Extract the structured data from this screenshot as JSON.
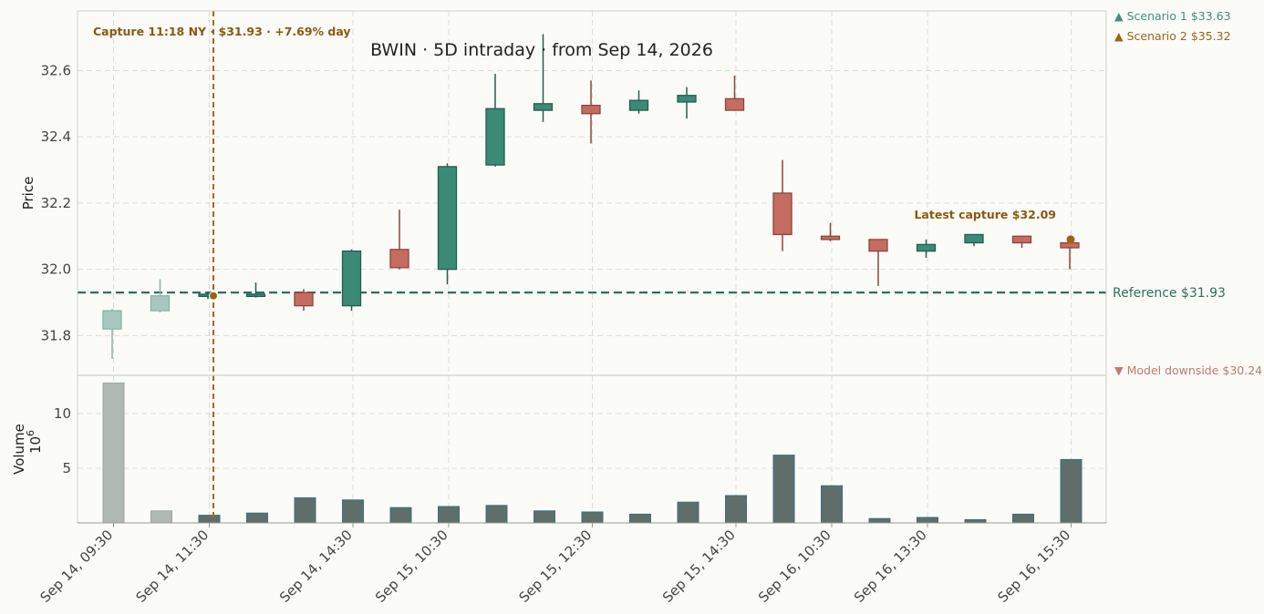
{
  "chart_data": {
    "type": "candlestick",
    "title": "BWIN  ·  5D intraday  ·  from Sep 14, 2026",
    "ylabel": "Price",
    "volume_label": "Volume",
    "volume_unit": "10^6",
    "price_ylim": [
      31.68,
      32.78
    ],
    "price_yticks": [
      "31.8",
      "32.0",
      "32.2",
      "32.4",
      "32.6"
    ],
    "price_ytick_values": [
      31.8,
      32.0,
      32.2,
      32.4,
      32.6
    ],
    "volume_ylim": [
      0,
      13.5
    ],
    "volume_yticks": [
      "5",
      "10"
    ],
    "volume_ytick_values": [
      5,
      10
    ],
    "x_tick_labels": [
      "Sep 14, 09:30",
      "Sep 14, 11:30",
      "Sep 14, 14:30",
      "Sep 15, 10:30",
      "Sep 15, 12:30",
      "Sep 15, 14:30",
      "Sep 16, 10:30",
      "Sep 16, 13:30",
      "Sep 16, 15:30"
    ],
    "x_tick_index": [
      0,
      2,
      5,
      7,
      10,
      13,
      15,
      17,
      20
    ],
    "candles": [
      {
        "o": 31.82,
        "h": 31.88,
        "l": 31.73,
        "c": 31.875,
        "v": 12.8,
        "faded": true
      },
      {
        "o": 31.875,
        "h": 31.97,
        "l": 31.87,
        "c": 31.92,
        "v": 1.1,
        "faded": true
      },
      {
        "o": 31.92,
        "h": 31.93,
        "l": 31.91,
        "c": 31.925,
        "v": 0.7
      },
      {
        "o": 31.92,
        "h": 31.96,
        "l": 31.915,
        "c": 31.925,
        "v": 0.9
      },
      {
        "o": 31.93,
        "h": 31.94,
        "l": 31.875,
        "c": 31.89,
        "v": 2.3
      },
      {
        "o": 31.89,
        "h": 32.06,
        "l": 31.875,
        "c": 32.055,
        "v": 2.1
      },
      {
        "o": 32.06,
        "h": 32.18,
        "l": 32.0,
        "c": 32.005,
        "v": 1.4
      },
      {
        "o": 32.0,
        "h": 32.32,
        "l": 31.955,
        "c": 32.31,
        "v": 1.5
      },
      {
        "o": 32.315,
        "h": 32.59,
        "l": 32.31,
        "c": 32.485,
        "v": 1.6
      },
      {
        "o": 32.48,
        "h": 32.71,
        "l": 32.445,
        "c": 32.5,
        "v": 1.1
      },
      {
        "o": 32.495,
        "h": 32.57,
        "l": 32.38,
        "c": 32.47,
        "v": 1.0
      },
      {
        "o": 32.48,
        "h": 32.54,
        "l": 32.47,
        "c": 32.51,
        "v": 0.8
      },
      {
        "o": 32.505,
        "h": 32.55,
        "l": 32.455,
        "c": 32.525,
        "v": 1.9
      },
      {
        "o": 32.515,
        "h": 32.585,
        "l": 32.48,
        "c": 32.48,
        "v": 2.5
      },
      {
        "o": 32.23,
        "h": 32.33,
        "l": 32.055,
        "c": 32.105,
        "v": 6.2
      },
      {
        "o": 32.1,
        "h": 32.14,
        "l": 32.085,
        "c": 32.09,
        "v": 3.4
      },
      {
        "o": 32.09,
        "h": 32.09,
        "l": 31.95,
        "c": 32.055,
        "v": 0.4
      },
      {
        "o": 32.055,
        "h": 32.09,
        "l": 32.035,
        "c": 32.075,
        "v": 0.5
      },
      {
        "o": 32.08,
        "h": 32.105,
        "l": 32.07,
        "c": 32.105,
        "v": 0.3
      },
      {
        "o": 32.1,
        "h": 32.1,
        "l": 32.065,
        "c": 32.08,
        "v": 0.8
      },
      {
        "o": 32.08,
        "h": 32.08,
        "l": 32.0,
        "c": 32.065,
        "v": 5.8
      }
    ],
    "reference": {
      "value": 31.93,
      "label": "Reference $31.93"
    },
    "capture_marker": {
      "index": 2,
      "value": 31.92,
      "label": "Capture 11:18 NY · $31.93 · +7.69% day"
    },
    "latest_capture": {
      "index": 20,
      "value": 32.09,
      "label": "Latest capture $32.09"
    },
    "scenarios": [
      {
        "label": "▲ Scenario 1 $33.63",
        "color": "#3f8f7d"
      },
      {
        "label": "▲ Scenario 2 $35.32",
        "color": "#98671c"
      },
      {
        "label": "▼ Model downside $30.24",
        "color": "#c17a6f"
      }
    ],
    "colors": {
      "up": "#3b8a76",
      "up_edge": "#245e4f",
      "down": "#c56c61",
      "down_edge": "#8d453c",
      "faded": "#a8c8bf",
      "volume": "#5f6e68",
      "volume_edge": "#3e6f86",
      "volume_faded": "#b0b8b4",
      "reference": "#2f6e5e",
      "capture": "#b0641a",
      "capture_text": "#8a5a0f",
      "grid": "#dcdcdc"
    },
    "grid": true
  }
}
